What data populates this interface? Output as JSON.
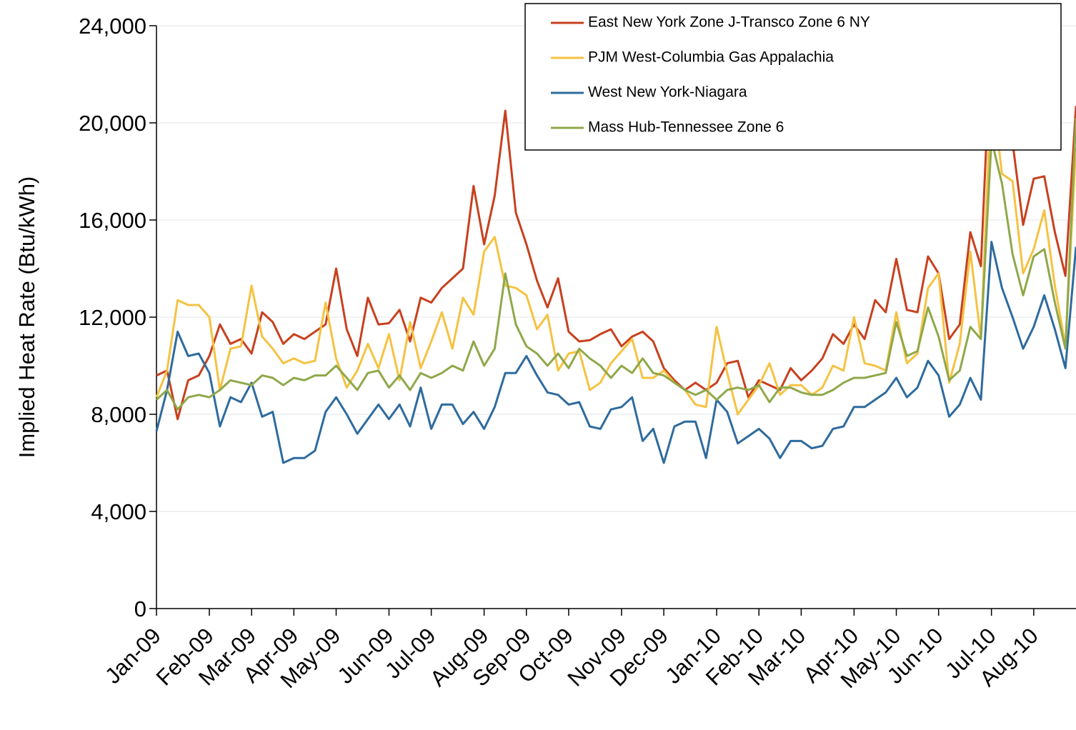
{
  "chart_data": {
    "type": "line",
    "y_label": "Implied Heat Rate (Btu/kWh)",
    "categories": [
      "Jan-09",
      null,
      null,
      null,
      null,
      "Feb-09",
      null,
      null,
      null,
      "Mar-09",
      null,
      null,
      null,
      "Apr-09",
      null,
      null,
      null,
      "May-09",
      null,
      null,
      null,
      null,
      "Jun-09",
      null,
      null,
      null,
      "Jul-09",
      null,
      null,
      null,
      null,
      "Aug-09",
      null,
      null,
      null,
      "Sep-09",
      null,
      null,
      null,
      "Oct-09",
      null,
      null,
      null,
      null,
      "Nov-09",
      null,
      null,
      null,
      "Dec-09",
      null,
      null,
      null,
      null,
      "Jan-10",
      null,
      null,
      null,
      "Feb-10",
      null,
      null,
      null,
      "Mar-10",
      null,
      null,
      null,
      null,
      "Apr-10",
      null,
      null,
      null,
      "May-10",
      null,
      null,
      null,
      "Jun-10",
      null,
      null,
      null,
      null,
      "Jul-10",
      null,
      null,
      null,
      "Aug-10",
      null,
      null,
      null,
      null
    ],
    "series": [
      {
        "name": "East New York Zone J-Transco Zone 6 NY",
        "color": "#c8401e",
        "values": [
          9600,
          9800,
          7800,
          9400,
          9600,
          10400,
          11700,
          10900,
          11100,
          10500,
          12200,
          11800,
          10900,
          11300,
          11100,
          11400,
          11700,
          14000,
          11500,
          10400,
          12800,
          11700,
          11750,
          12300,
          11000,
          12800,
          12600,
          13200,
          13600,
          14000,
          17400,
          15000,
          17000,
          20500,
          16300,
          15000,
          13500,
          12400,
          13600,
          11400,
          11000,
          11050,
          11300,
          11500,
          10800,
          11200,
          11400,
          11000,
          9900,
          9400,
          9000,
          9300,
          9000,
          9300,
          10100,
          10200,
          8700,
          9400,
          9200,
          9000,
          9900,
          9400,
          9800,
          10300,
          11300,
          10900,
          11700,
          11100,
          12700,
          12200,
          14400,
          12300,
          12200,
          14500,
          13800,
          11100,
          11700,
          15500,
          14100,
          24000,
          20500,
          19200,
          15800,
          17700,
          17800,
          15500,
          13700,
          20700
        ]
      },
      {
        "name": "PJM West-Columbia Gas Appalachia",
        "color": "#f5c242",
        "values": [
          8700,
          9800,
          12700,
          12500,
          12500,
          12000,
          9000,
          10700,
          10800,
          13300,
          11200,
          10700,
          10100,
          10300,
          10100,
          10200,
          12600,
          10300,
          9100,
          9800,
          10900,
          9900,
          11300,
          9400,
          11800,
          9900,
          11000,
          12200,
          10700,
          12800,
          12100,
          14700,
          15300,
          13300,
          13200,
          12900,
          11500,
          12100,
          9800,
          10500,
          10600,
          9000,
          9300,
          10100,
          10600,
          11100,
          9500,
          9500,
          9800,
          9300,
          9000,
          8400,
          8300,
          11600,
          9700,
          8000,
          8600,
          9200,
          10100,
          8800,
          9200,
          9200,
          8800,
          9100,
          10000,
          9800,
          12000,
          10100,
          10000,
          9800,
          12200,
          10100,
          10500,
          13200,
          13800,
          9300,
          10900,
          14700,
          11100,
          21600,
          17900,
          17600,
          13800,
          14800,
          16400,
          13300,
          10800,
          19000
        ]
      },
      {
        "name": "West New York-Niagara",
        "color": "#2e6b9e",
        "values": [
          7300,
          9000,
          11400,
          10400,
          10500,
          9700,
          7500,
          8700,
          8500,
          9300,
          7900,
          8100,
          6000,
          6200,
          6200,
          6500,
          8100,
          8700,
          8000,
          7200,
          7800,
          8400,
          7800,
          8400,
          7500,
          9100,
          7400,
          8400,
          8400,
          7600,
          8100,
          7400,
          8300,
          9700,
          9700,
          10400,
          9600,
          8900,
          8800,
          8400,
          8500,
          7500,
          7400,
          8200,
          8300,
          8700,
          6900,
          7400,
          6000,
          7500,
          7700,
          7700,
          6200,
          8600,
          8100,
          6800,
          7100,
          7400,
          7000,
          6200,
          6900,
          6900,
          6600,
          6700,
          7400,
          7500,
          8300,
          8300,
          8600,
          8900,
          9500,
          8700,
          9100,
          10200,
          9600,
          7900,
          8400,
          9500,
          8600,
          15100,
          13200,
          12000,
          10700,
          11600,
          12900,
          11500,
          9900,
          14900
        ]
      },
      {
        "name": "Mass Hub-Tennessee Zone 6",
        "color": "#8fa84a",
        "values": [
          8600,
          9000,
          8200,
          8700,
          8800,
          8700,
          9000,
          9400,
          9300,
          9200,
          9600,
          9500,
          9200,
          9500,
          9400,
          9600,
          9600,
          10000,
          9500,
          9000,
          9700,
          9800,
          9100,
          9600,
          9000,
          9700,
          9500,
          9700,
          10000,
          9800,
          11000,
          10000,
          10700,
          13800,
          11700,
          10800,
          10500,
          10000,
          10500,
          9900,
          10700,
          10300,
          10000,
          9500,
          10000,
          9700,
          10300,
          9700,
          9600,
          9300,
          9000,
          8800,
          9000,
          8600,
          9000,
          9100,
          9000,
          9200,
          8500,
          9100,
          9100,
          8900,
          8800,
          8800,
          9000,
          9300,
          9500,
          9500,
          9600,
          9700,
          11800,
          10400,
          10600,
          12400,
          11200,
          9400,
          9800,
          11600,
          11100,
          19300,
          17500,
          14600,
          12900,
          14500,
          14800,
          12600,
          10700,
          20200
        ]
      }
    ],
    "ylim": [
      0,
      24000
    ],
    "yticks": [
      0,
      {
        "value": 4000,
        "label": "4,000"
      },
      {
        "value": 8000,
        "label": "8,000"
      },
      {
        "value": 12000,
        "label": "12,000"
      },
      {
        "value": 16000,
        "label": "16,000"
      },
      {
        "value": 20000,
        "label": "20,000"
      },
      {
        "value": 24000,
        "label": "24,000"
      }
    ],
    "grid": true,
    "legend": "top-right"
  }
}
